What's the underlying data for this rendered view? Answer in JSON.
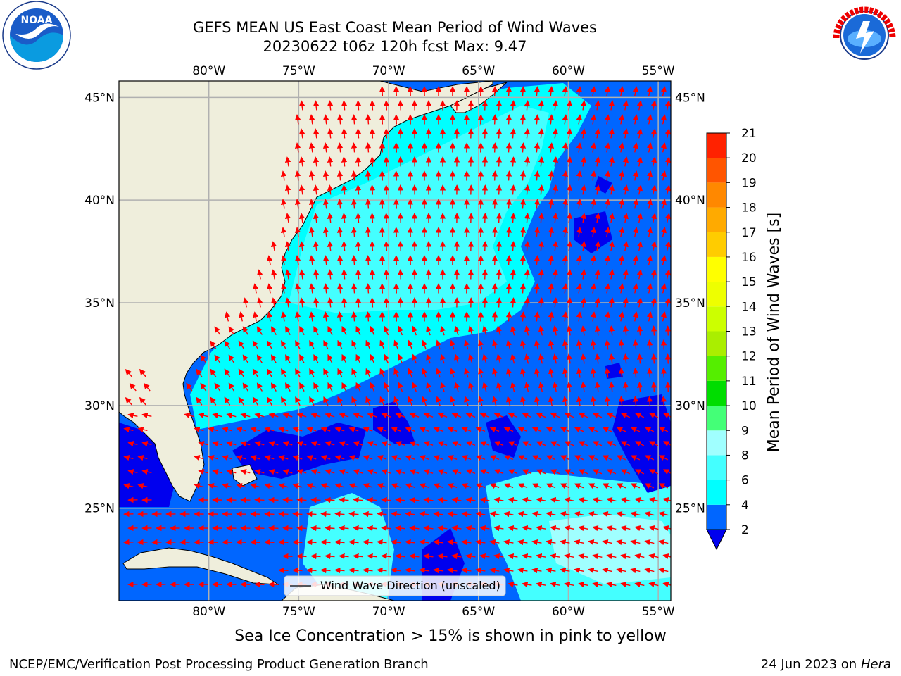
{
  "title_line1": "GEFS MEAN US East Coast Mean Period of Wind Waves",
  "title_line2": "20230622 t06z 120h fcst   Max: 9.47",
  "map": {
    "lon_labels": [
      "80°W",
      "75°W",
      "70°W",
      "65°W",
      "60°W",
      "55°W"
    ],
    "lat_labels": [
      "45°N",
      "40°N",
      "35°N",
      "30°N",
      "25°N"
    ],
    "lon_values": [
      -80,
      -75,
      -70,
      -65,
      -60,
      -55
    ],
    "lat_values": [
      45,
      40,
      35,
      30,
      25
    ],
    "extent": {
      "lon_min": -85,
      "lon_max": -54.3,
      "lat_min": 20.5,
      "lat_max": 45.8
    },
    "legend_label": "Wind Wave Direction (unscaled)",
    "land_color": "#efeedc",
    "arrow_color": "#ff0000"
  },
  "colorbar": {
    "label": "Mean Period of Wind Waves [s]",
    "ticks": [
      "2",
      "4",
      "6",
      "8",
      "9",
      "10",
      "11",
      "12",
      "13",
      "14",
      "15",
      "16",
      "17",
      "18",
      "19",
      "20",
      "21"
    ],
    "colors": [
      "#0066ff",
      "#00ffff",
      "#44ffff",
      "#a0ffff",
      "#44ff77",
      "#00dd00",
      "#55ee00",
      "#aaee00",
      "#ccff00",
      "#eeff00",
      "#ffff00",
      "#ffcc00",
      "#ffaa00",
      "#ff8800",
      "#ff5500",
      "#ff2200"
    ],
    "under_color": "#0000ee"
  },
  "note": "Sea Ice Concentration > 15% is shown in pink to yellow",
  "footer_left": "NCEP/EMC/Verification Post Processing Product Generation Branch",
  "footer_date": "24 Jun 2023 on",
  "footer_machine": "Hera",
  "logos": {
    "left": "NOAA",
    "right": "NATIONAL WEATHER SERVICE"
  }
}
